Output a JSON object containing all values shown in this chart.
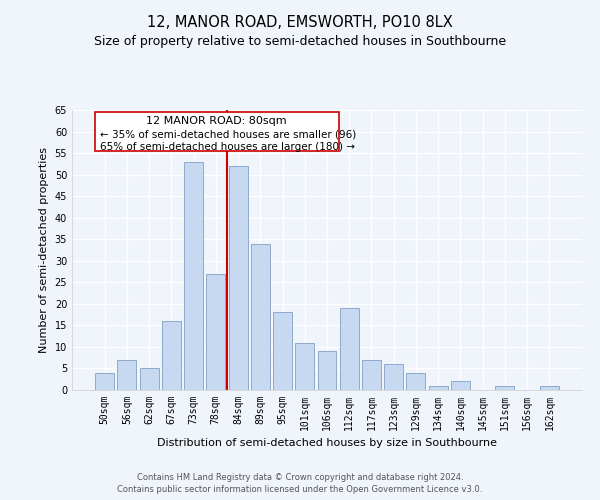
{
  "title": "12, MANOR ROAD, EMSWORTH, PO10 8LX",
  "subtitle": "Size of property relative to semi-detached houses in Southbourne",
  "xlabel": "Distribution of semi-detached houses by size in Southbourne",
  "ylabel": "Number of semi-detached properties",
  "bar_labels": [
    "50sqm",
    "56sqm",
    "62sqm",
    "67sqm",
    "73sqm",
    "78sqm",
    "84sqm",
    "89sqm",
    "95sqm",
    "101sqm",
    "106sqm",
    "112sqm",
    "117sqm",
    "123sqm",
    "129sqm",
    "134sqm",
    "140sqm",
    "145sqm",
    "151sqm",
    "156sqm",
    "162sqm"
  ],
  "bar_values": [
    4,
    7,
    5,
    16,
    53,
    27,
    52,
    34,
    18,
    11,
    9,
    19,
    7,
    6,
    4,
    1,
    2,
    0,
    1,
    0,
    1
  ],
  "bar_color": "#c6d9f1",
  "bar_edge_color": "#8eaacc",
  "highlight_line_color": "#cc0000",
  "annotation_title": "12 MANOR ROAD: 80sqm",
  "annotation_line1": "← 35% of semi-detached houses are smaller (96)",
  "annotation_line2": "65% of semi-detached houses are larger (180) →",
  "annotation_box_color": "#ffffff",
  "annotation_box_edge": "#cc0000",
  "ylim": [
    0,
    65
  ],
  "yticks": [
    0,
    5,
    10,
    15,
    20,
    25,
    30,
    35,
    40,
    45,
    50,
    55,
    60,
    65
  ],
  "footer1": "Contains HM Land Registry data © Crown copyright and database right 2024.",
  "footer2": "Contains public sector information licensed under the Open Government Licence v3.0.",
  "bg_color": "#f0f4fb",
  "grid_color": "#ffffff",
  "title_fontsize": 10.5,
  "subtitle_fontsize": 9,
  "axis_label_fontsize": 8,
  "tick_fontsize": 7,
  "footer_fontsize": 6,
  "ann_title_fontsize": 8,
  "ann_text_fontsize": 7.5
}
